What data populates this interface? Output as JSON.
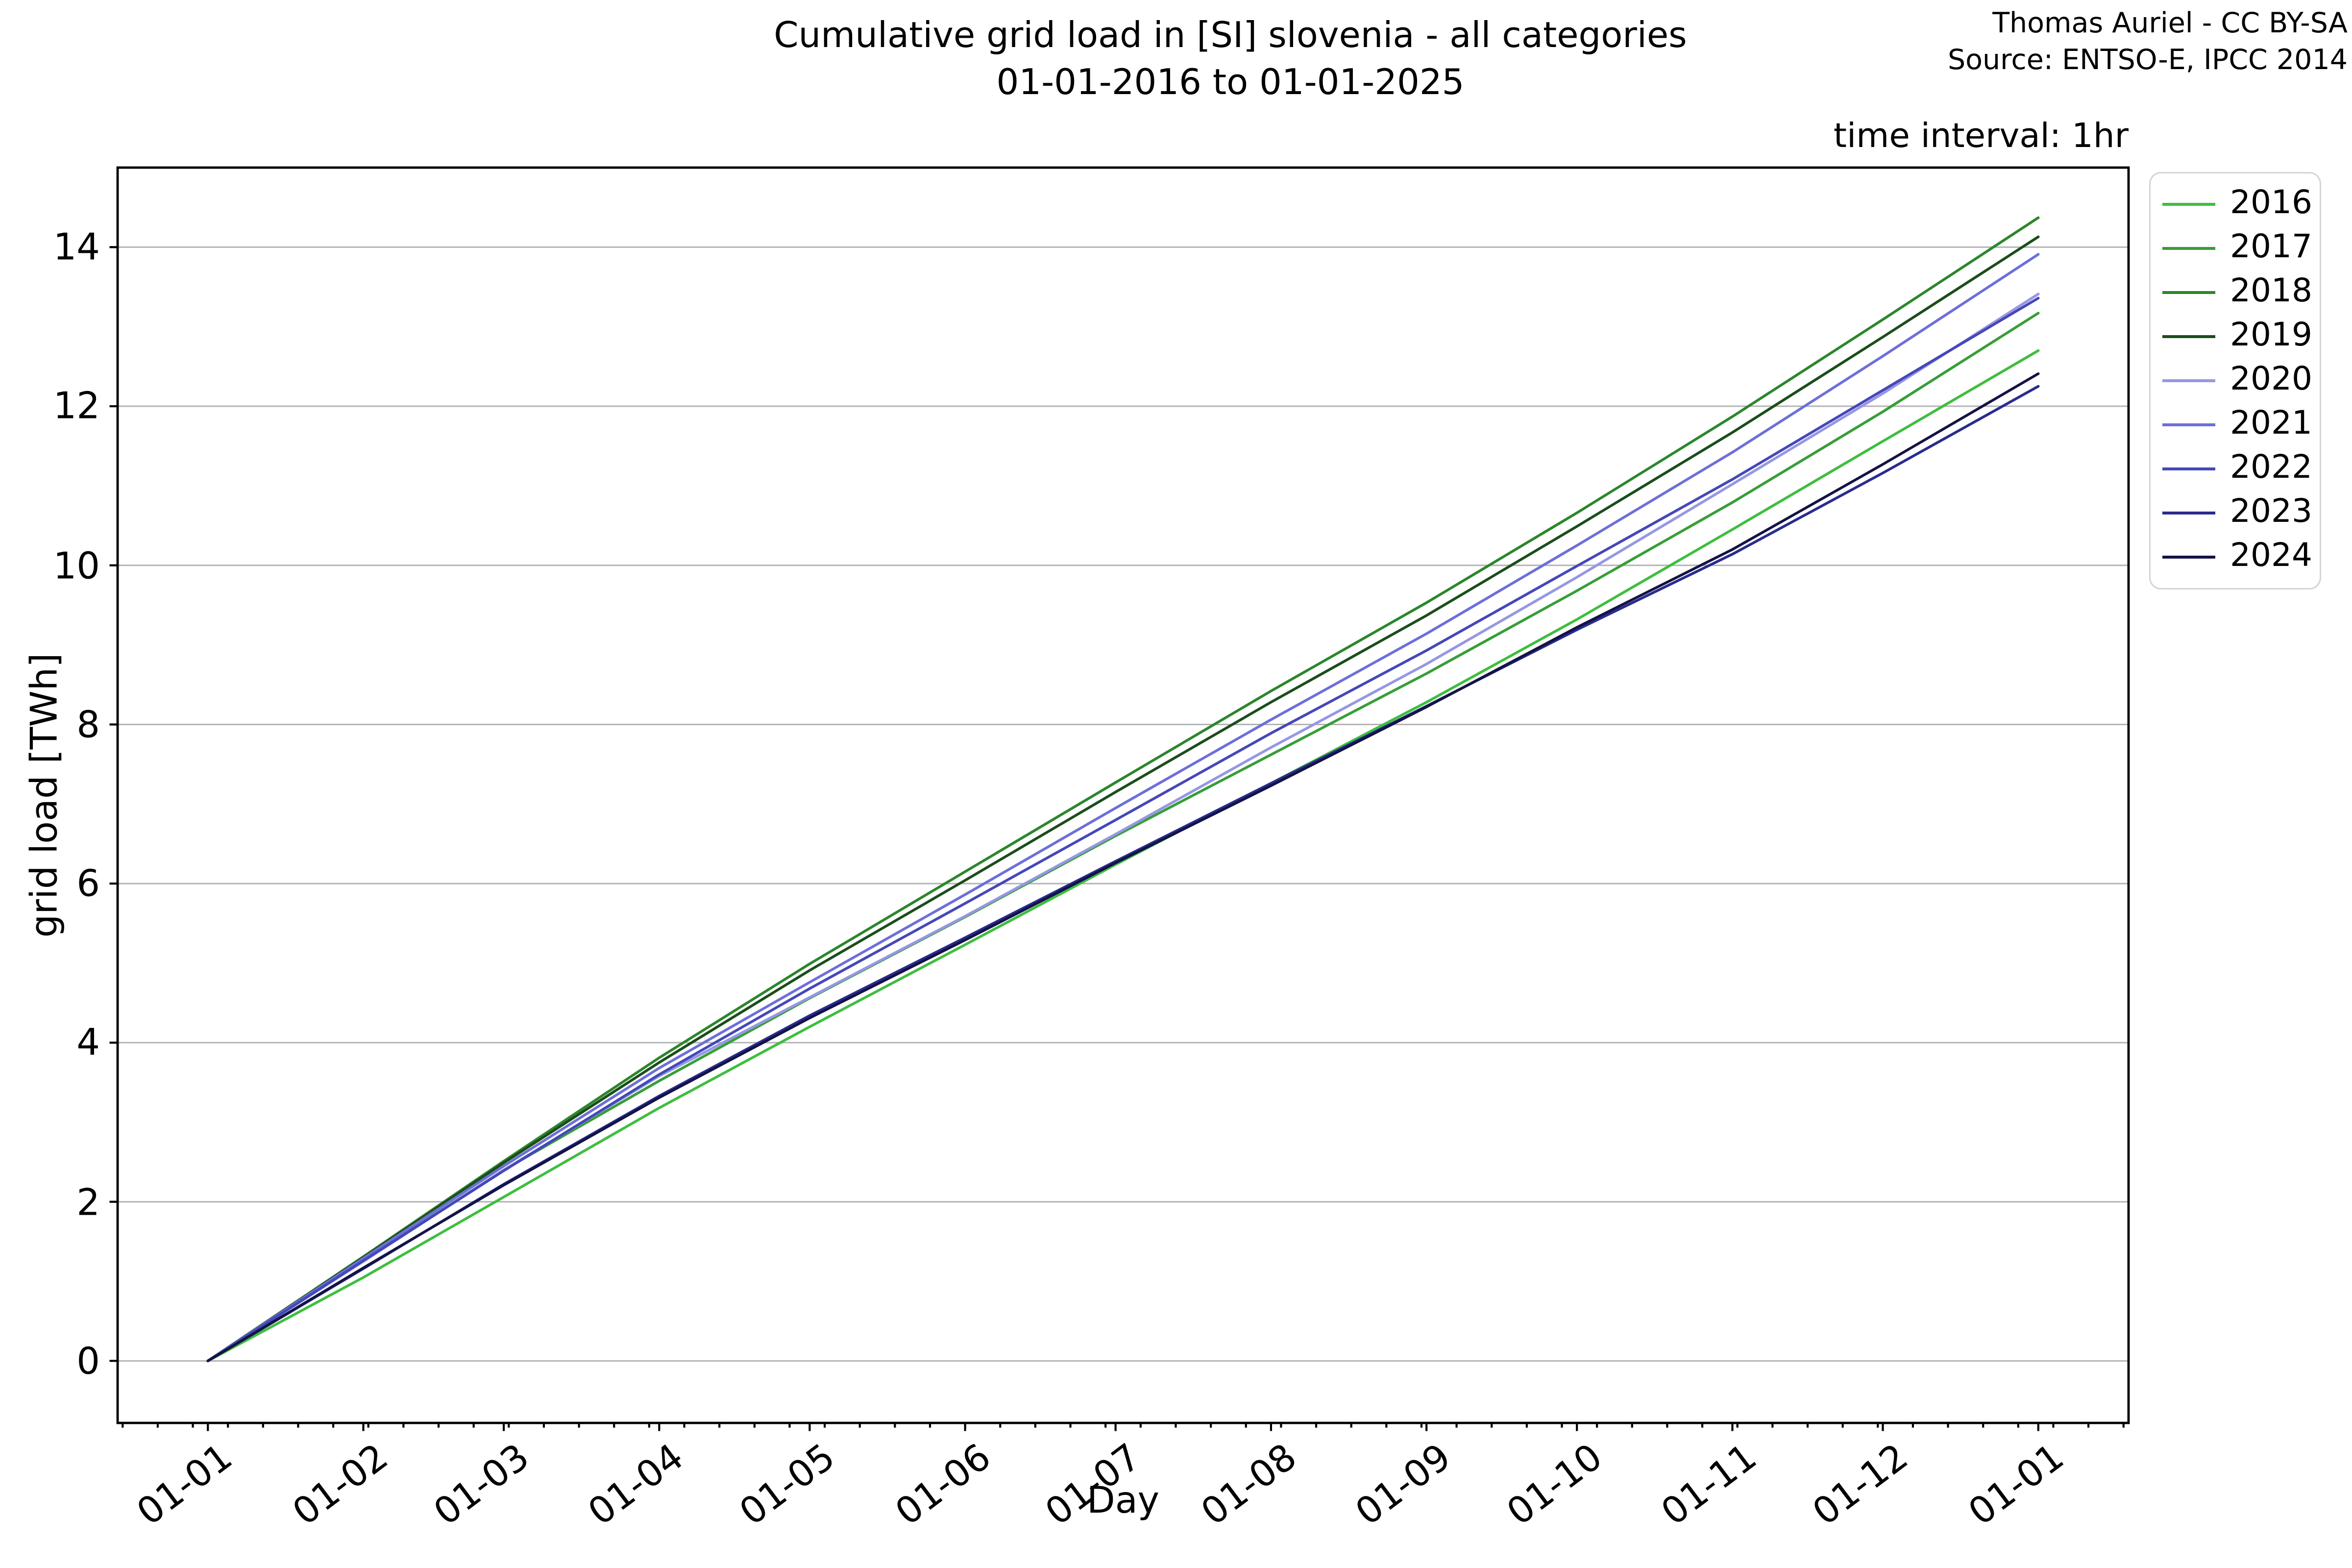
{
  "header": {
    "title_line1": "Cumulative grid load in [SI] slovenia - all categories",
    "title_line2": "01-01-2016 to 01-01-2025",
    "attribution_line1": "Thomas Auriel - CC BY-SA",
    "attribution_line2": "Source: ENTSO-E, IPCC 2014",
    "time_interval_note": "time interval: 1hr"
  },
  "chart_data": {
    "type": "line",
    "title": "Cumulative grid load in [SI] slovenia - all categories 01-01-2016 to 01-01-2025",
    "xlabel": "Day",
    "ylabel": "grid load [TWh]",
    "grid": "horizontal",
    "legend_position": "outside-upper-right",
    "xlim": [
      -18,
      383
    ],
    "ylim": [
      -0.78,
      15.0
    ],
    "y_ticks": [
      0,
      2,
      4,
      6,
      8,
      10,
      12,
      14
    ],
    "x_tick_labels": [
      "01-01",
      "01-02",
      "01-03",
      "01-04",
      "01-05",
      "01-06",
      "01-07",
      "01-08",
      "01-09",
      "01-10",
      "01-11",
      "01-12",
      "01-01"
    ],
    "x_tick_days": [
      0,
      31,
      59,
      90,
      120,
      151,
      181,
      212,
      243,
      273,
      304,
      334,
      365
    ],
    "x_minor_tick_interval_days": 7,
    "x_minor_tick_phase_day": 4,
    "x_days": [
      0,
      31,
      59,
      90,
      120,
      151,
      181,
      212,
      243,
      273,
      304,
      334,
      365
    ],
    "axis_color": "#000000",
    "gridline_color": "#b4b4b4",
    "series": [
      {
        "name": "2016",
        "color": "#3fbe3f",
        "values": [
          0,
          1.05,
          2.06,
          3.18,
          4.2,
          5.23,
          6.24,
          7.26,
          8.28,
          9.32,
          10.45,
          11.56,
          12.7
        ]
      },
      {
        "name": "2017",
        "color": "#379e37",
        "values": [
          0,
          1.26,
          2.4,
          3.52,
          4.56,
          5.58,
          6.6,
          7.62,
          8.64,
          9.68,
          10.79,
          11.93,
          13.17
        ]
      },
      {
        "name": "2018",
        "color": "#2c862c",
        "values": [
          0,
          1.31,
          2.51,
          3.81,
          4.99,
          6.15,
          7.27,
          8.42,
          9.53,
          10.66,
          11.87,
          13.09,
          14.37
        ]
      },
      {
        "name": "2019",
        "color": "#1b4d1b",
        "values": [
          0,
          1.3,
          2.49,
          3.75,
          4.91,
          6.04,
          7.15,
          8.28,
          9.37,
          10.49,
          11.67,
          12.87,
          14.13
        ]
      },
      {
        "name": "2020",
        "color": "#9697e3",
        "values": [
          0,
          1.25,
          2.4,
          3.58,
          4.57,
          5.59,
          6.62,
          7.71,
          8.76,
          9.85,
          11.02,
          12.16,
          13.41
        ]
      },
      {
        "name": "2021",
        "color": "#6d6fd9",
        "values": [
          0,
          1.29,
          2.45,
          3.68,
          4.76,
          5.86,
          6.95,
          8.06,
          9.14,
          10.25,
          11.42,
          12.63,
          13.91
        ]
      },
      {
        "name": "2022",
        "color": "#4547b9",
        "values": [
          0,
          1.26,
          2.39,
          3.6,
          4.68,
          5.75,
          6.8,
          7.89,
          8.93,
          9.99,
          11.08,
          12.2,
          13.36
        ]
      },
      {
        "name": "2023",
        "color": "#2a2b8f",
        "values": [
          0,
          1.16,
          2.22,
          3.33,
          4.34,
          5.32,
          6.28,
          7.26,
          8.23,
          9.19,
          10.14,
          11.16,
          12.25
        ]
      },
      {
        "name": "2024",
        "color": "#131345",
        "values": [
          0,
          1.17,
          2.21,
          3.31,
          4.31,
          5.29,
          6.26,
          7.23,
          8.22,
          9.22,
          10.2,
          11.27,
          12.41
        ]
      }
    ]
  }
}
